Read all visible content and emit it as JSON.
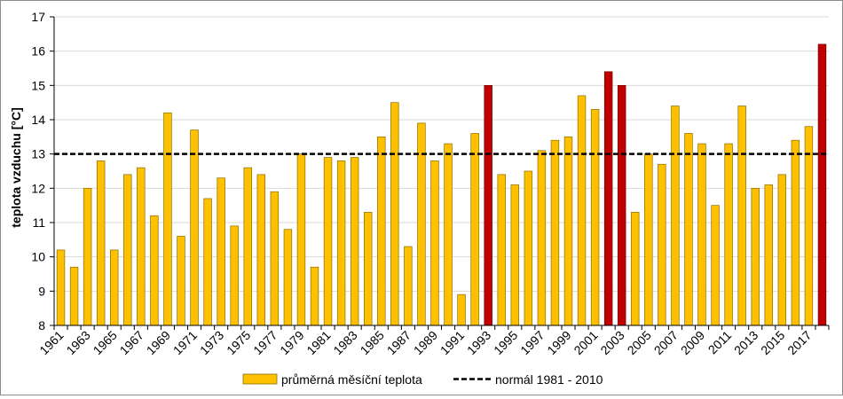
{
  "chart_data": {
    "type": "bar",
    "title": "",
    "xlabel": "",
    "ylabel": "teplota vzduchu [°C]",
    "ylim": [
      8,
      17
    ],
    "yticks": [
      8,
      9,
      10,
      11,
      12,
      13,
      14,
      15,
      16,
      17
    ],
    "grid": "horizontal",
    "legend_position": "bottom",
    "categories": [
      1961,
      1962,
      1963,
      1964,
      1965,
      1966,
      1967,
      1968,
      1969,
      1970,
      1971,
      1972,
      1973,
      1974,
      1975,
      1976,
      1977,
      1978,
      1979,
      1980,
      1981,
      1982,
      1983,
      1984,
      1985,
      1986,
      1987,
      1988,
      1989,
      1990,
      1991,
      1992,
      1993,
      1994,
      1995,
      1996,
      1997,
      1998,
      1999,
      2000,
      2001,
      2002,
      2003,
      2004,
      2005,
      2006,
      2007,
      2008,
      2009,
      2010,
      2011,
      2012,
      2013,
      2014,
      2015,
      2016,
      2017,
      2018
    ],
    "x_tick_labels": [
      "1961",
      "1963",
      "1965",
      "1967",
      "1969",
      "1971",
      "1973",
      "1975",
      "1977",
      "1979",
      "1981",
      "1983",
      "1985",
      "1987",
      "1989",
      "1991",
      "1993",
      "1995",
      "1997",
      "1999",
      "2001",
      "2003",
      "2005",
      "2007",
      "2009",
      "2011",
      "2013",
      "2015",
      "2017"
    ],
    "series": [
      {
        "name": "průměrná měsíční teplota",
        "values": [
          10.2,
          9.7,
          12.0,
          12.8,
          10.2,
          12.4,
          12.6,
          11.2,
          14.2,
          10.6,
          13.7,
          11.7,
          12.3,
          10.9,
          12.6,
          12.4,
          11.9,
          10.8,
          13.0,
          9.7,
          12.9,
          12.8,
          12.9,
          11.3,
          13.5,
          14.5,
          10.3,
          13.9,
          12.8,
          13.3,
          8.9,
          13.6,
          15.0,
          12.4,
          12.1,
          12.5,
          13.1,
          13.4,
          13.5,
          14.7,
          14.3,
          15.4,
          15.0,
          11.3,
          13.0,
          12.7,
          14.4,
          13.6,
          13.3,
          11.5,
          13.3,
          14.4,
          12.0,
          12.1,
          12.4,
          13.4,
          13.8,
          16.2
        ],
        "color": "#FFC000",
        "highlight_color": "#C00000",
        "highlight_categories": [
          1993,
          2002,
          2003,
          2018
        ]
      }
    ],
    "reference_line": {
      "name": "normál 1981 - 2010",
      "value": 13.0,
      "color": "#000000",
      "style": "dashed"
    }
  }
}
